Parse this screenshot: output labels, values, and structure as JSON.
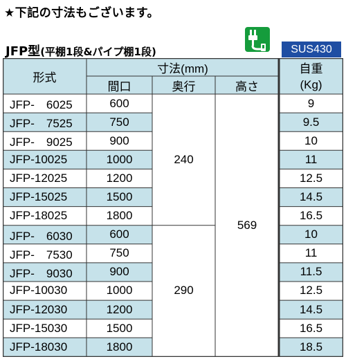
{
  "note": "★下記の寸法もございます。",
  "title": "JFP型",
  "subtitle": "(平棚1段&パイプ棚1段)",
  "material_icon": "material-symbol-icon",
  "material_badge": "SUS430",
  "table": {
    "header": {
      "model": "形式",
      "dimensions": "寸法(mm)",
      "width": "間口",
      "depth": "奥行",
      "height": "高さ",
      "weight_title": "自重",
      "weight_unit": "(Kg)"
    },
    "depth_groups": [
      "240",
      "290"
    ],
    "height_all": "569",
    "rows": [
      {
        "model": "JFP-　6025",
        "width": "600",
        "weight": "9"
      },
      {
        "model": "JFP-　7525",
        "width": "750",
        "weight": "9.5"
      },
      {
        "model": "JFP-　9025",
        "width": "900",
        "weight": "10"
      },
      {
        "model": "JFP-10025",
        "width": "1000",
        "weight": "11"
      },
      {
        "model": "JFP-12025",
        "width": "1200",
        "weight": "12.5"
      },
      {
        "model": "JFP-15025",
        "width": "1500",
        "weight": "14.5"
      },
      {
        "model": "JFP-18025",
        "width": "1800",
        "weight": "16.5"
      },
      {
        "model": "JFP-　6030",
        "width": "600",
        "weight": "10"
      },
      {
        "model": "JFP-　7530",
        "width": "750",
        "weight": "11"
      },
      {
        "model": "JFP-　9030",
        "width": "900",
        "weight": "11.5"
      },
      {
        "model": "JFP-10030",
        "width": "1000",
        "weight": "12.5"
      },
      {
        "model": "JFP-12030",
        "width": "1200",
        "weight": "14.5"
      },
      {
        "model": "JFP-15030",
        "width": "1500",
        "weight": "16.5"
      },
      {
        "model": "JFP-18030",
        "width": "1800",
        "weight": "18.5"
      }
    ],
    "colors": {
      "header_bg": "#c6e2ea",
      "stripe_bg": "#c6e2ea",
      "border": "#333333"
    }
  }
}
